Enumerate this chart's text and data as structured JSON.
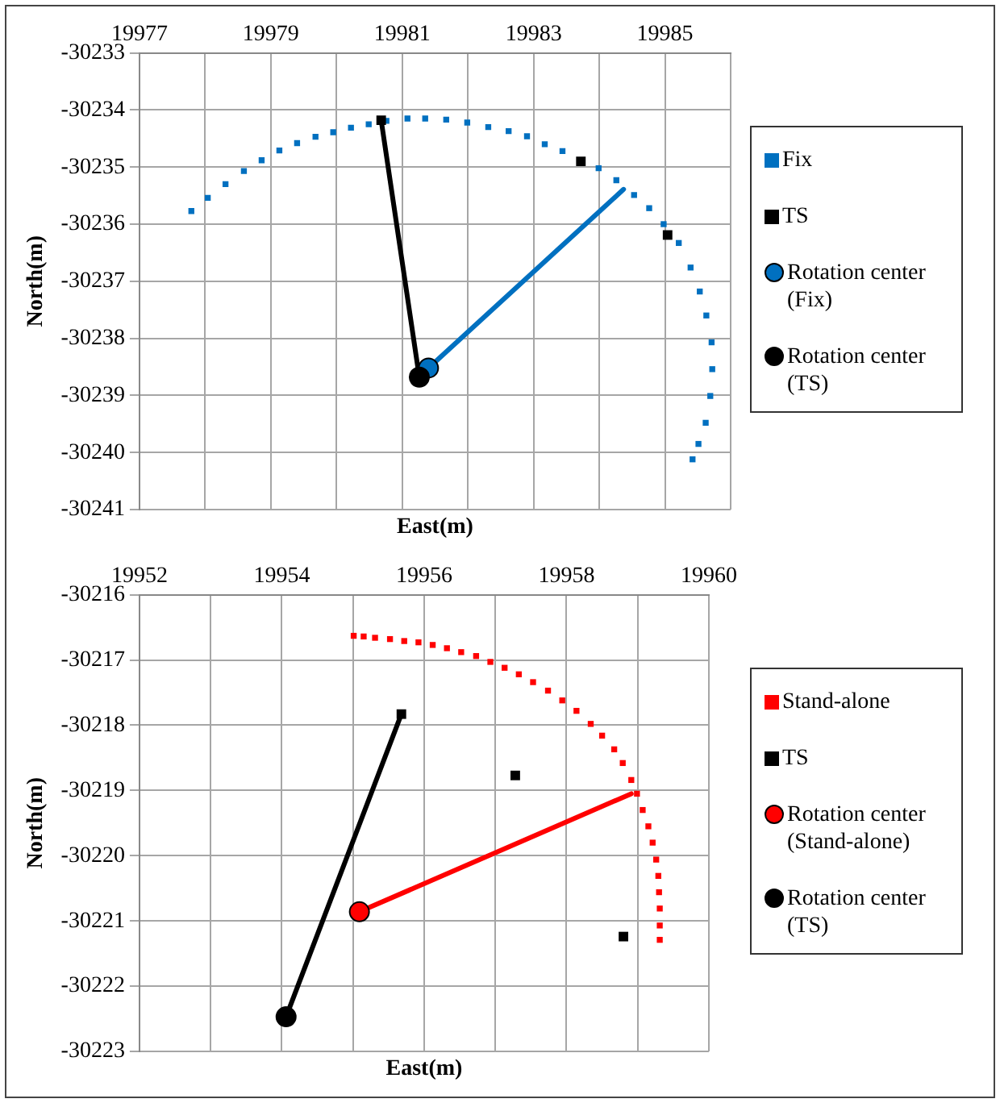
{
  "chart_data": [
    {
      "type": "scatter",
      "xlabel": "East(m)",
      "ylabel": "North(m)",
      "xlim": [
        19977,
        19986
      ],
      "xticks": [
        19977,
        {
          "value": 19978,
          "label": null
        },
        19979,
        {
          "value": 19980,
          "label": null
        },
        19981,
        {
          "value": 19982,
          "label": null
        },
        19983,
        {
          "value": 19984,
          "label": null
        },
        19985,
        {
          "value": 19986,
          "label": null
        }
      ],
      "ylim": [
        -30241,
        -30233
      ],
      "yticks": [
        -30241,
        -30240,
        -30239,
        -30238,
        -30237,
        -30236,
        -30235,
        -30234,
        -30233
      ],
      "grid": true,
      "legend": "right",
      "series": [
        {
          "type": "line",
          "color": "#0070c0",
          "marker": "none",
          "x": [
            19981.4,
            19984.37
          ],
          "values": [
            -30238.52,
            -30235.39
          ]
        },
        {
          "type": "line",
          "color": "#000000",
          "marker": "none",
          "x": [
            19981.26,
            19980.68
          ],
          "values": [
            -30238.68,
            -30234.18
          ]
        },
        {
          "name": "Fix",
          "color": "#0070c0",
          "marker": "square",
          "x": [
            19977.79,
            19978.04,
            19978.31,
            19978.59,
            19978.86,
            19979.13,
            19979.4,
            19979.68,
            19979.95,
            19980.22,
            19980.49,
            19980.76,
            19981.08,
            19981.35,
            19981.67,
            19981.99,
            19982.31,
            19982.62,
            19982.9,
            19983.17,
            19983.44,
            19983.71,
            19983.99,
            19984.26,
            19984.53,
            19984.76,
            19984.98,
            19985.21,
            19985.39,
            19985.53,
            19985.63,
            19985.71,
            19985.72,
            19985.69,
            19985.62,
            19985.51,
            19985.42
          ],
          "values": [
            -30235.77,
            -30235.54,
            -30235.3,
            -30235.07,
            -30234.88,
            -30234.71,
            -30234.58,
            -30234.47,
            -30234.39,
            -30234.31,
            -30234.25,
            -30234.19,
            -30234.15,
            -30234.15,
            -30234.17,
            -30234.22,
            -30234.3,
            -30234.37,
            -30234.46,
            -30234.6,
            -30234.72,
            null,
            -30235.02,
            -30235.23,
            -30235.49,
            -30235.72,
            -30236.0,
            -30236.33,
            -30236.76,
            -30237.18,
            -30237.6,
            -30238.07,
            -30238.54,
            -30239.01,
            -30239.48,
            -30239.85,
            -30240.12
          ]
        },
        {
          "name": "TS",
          "color": "#000000",
          "marker": "square",
          "x": [
            19980.68,
            19983.72,
            19985.04
          ],
          "values": [
            -30234.18,
            -30234.9,
            -30236.19
          ]
        },
        {
          "name": "Rotation center (Fix)",
          "color": "#0070c0",
          "marker": "circle",
          "x": [
            19981.4
          ],
          "values": [
            -30238.52
          ]
        },
        {
          "name": "Rotation center (TS)",
          "color": "#000000",
          "marker": "circle",
          "x": [
            19981.26
          ],
          "values": [
            -30238.68
          ]
        }
      ]
    },
    {
      "type": "scatter",
      "xlabel": "East(m)",
      "ylabel": "North(m)",
      "xlim": [
        19952,
        19960
      ],
      "xticks": [
        19952,
        {
          "value": 19953,
          "label": null
        },
        19954,
        {
          "value": 19955,
          "label": null
        },
        19956,
        {
          "value": 19957,
          "label": null
        },
        19958,
        {
          "value": 19959,
          "label": null
        },
        19960
      ],
      "ylim": [
        -30223,
        -30216
      ],
      "yticks": [
        -30223,
        -30222,
        -30221,
        -30220,
        -30219,
        -30218,
        -30217,
        -30216
      ],
      "grid": true,
      "legend": "right",
      "series": [
        {
          "type": "line",
          "color": "#ff0000",
          "marker": "none",
          "x": [
            19955.09,
            19958.91
          ],
          "values": [
            -30220.86,
            -30219.05
          ]
        },
        {
          "type": "line",
          "color": "#000000",
          "marker": "none",
          "x": [
            19954.06,
            19955.68
          ],
          "values": [
            -30222.47,
            -30217.83
          ]
        },
        {
          "name": "Stand-alone",
          "color": "#ff0000",
          "marker": "square",
          "x": [
            19955.01,
            19955.15,
            19955.31,
            19955.52,
            19955.72,
            19955.92,
            19956.12,
            19956.32,
            19956.52,
            19956.73,
            19956.93,
            19957.13,
            19957.33,
            19957.53,
            19957.74,
            19957.94,
            19958.14,
            19958.34,
            19958.5,
            19958.67,
            19958.79,
            19958.91,
            19958.99,
            19959.07,
            19959.15,
            19959.21,
            19959.26,
            19959.29,
            19959.3,
            19959.31,
            19959.31,
            19959.31
          ],
          "values": [
            -30216.63,
            -30216.64,
            -30216.66,
            -30216.68,
            -30216.71,
            -30216.73,
            -30216.77,
            -30216.82,
            -30216.88,
            -30216.94,
            -30217.03,
            -30217.12,
            -30217.22,
            -30217.34,
            -30217.47,
            -30217.62,
            -30217.78,
            -30217.98,
            -30218.16,
            -30218.37,
            -30218.58,
            -30218.84,
            -30219.05,
            -30219.3,
            -30219.55,
            -30219.8,
            -30220.06,
            -30220.31,
            -30220.56,
            -30220.81,
            -30221.07,
            -30221.29
          ]
        },
        {
          "name": "TS",
          "color": "#000000",
          "marker": "square",
          "x": [
            19955.68,
            19957.28,
            19958.8
          ],
          "values": [
            -30217.83,
            -30218.77,
            -30221.24
          ]
        },
        {
          "name": "Rotation center (Stand-alone)",
          "color": "#ff0000",
          "marker": "circle",
          "x": [
            19955.09
          ],
          "values": [
            -30220.86
          ]
        },
        {
          "name": "Rotation center (TS)",
          "color": "#000000",
          "marker": "circle",
          "x": [
            19954.06
          ],
          "values": [
            -30222.47
          ]
        }
      ]
    }
  ]
}
